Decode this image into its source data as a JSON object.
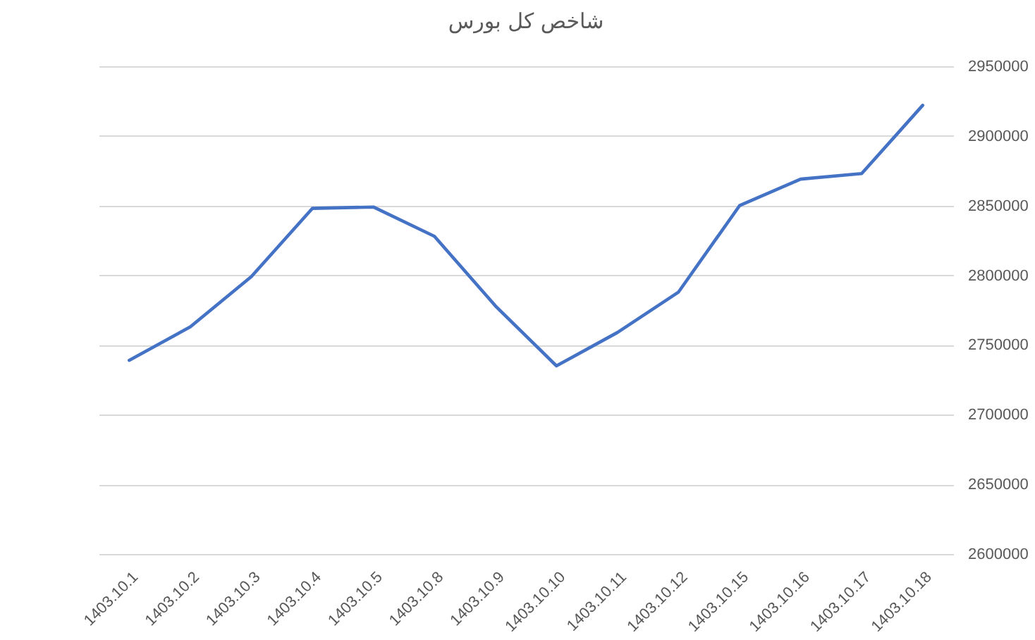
{
  "chart_data": {
    "type": "line",
    "title": "شاخص کل بورس",
    "categories": [
      "1403.10.1",
      "1403.10.2",
      "1403.10.3",
      "1403.10.4",
      "1403.10.5",
      "1403.10.8",
      "1403.10.9",
      "1403.10.10",
      "1403.10.11",
      "1403.10.12",
      "1403.10.15",
      "1403.10.16",
      "1403.10.17",
      "1403.10.18"
    ],
    "series": [
      {
        "color": "#4472c4",
        "values": [
          2739000,
          2763000,
          2799000,
          2848000,
          2849000,
          2828000,
          2778000,
          2735000,
          2759000,
          2788000,
          2850000,
          2869000,
          2873000,
          2922000
        ]
      }
    ],
    "ylim": [
      2600000,
      2950000
    ],
    "yticks": [
      2600000,
      2650000,
      2700000,
      2750000,
      2800000,
      2850000,
      2900000,
      2950000
    ],
    "grid": "y"
  }
}
